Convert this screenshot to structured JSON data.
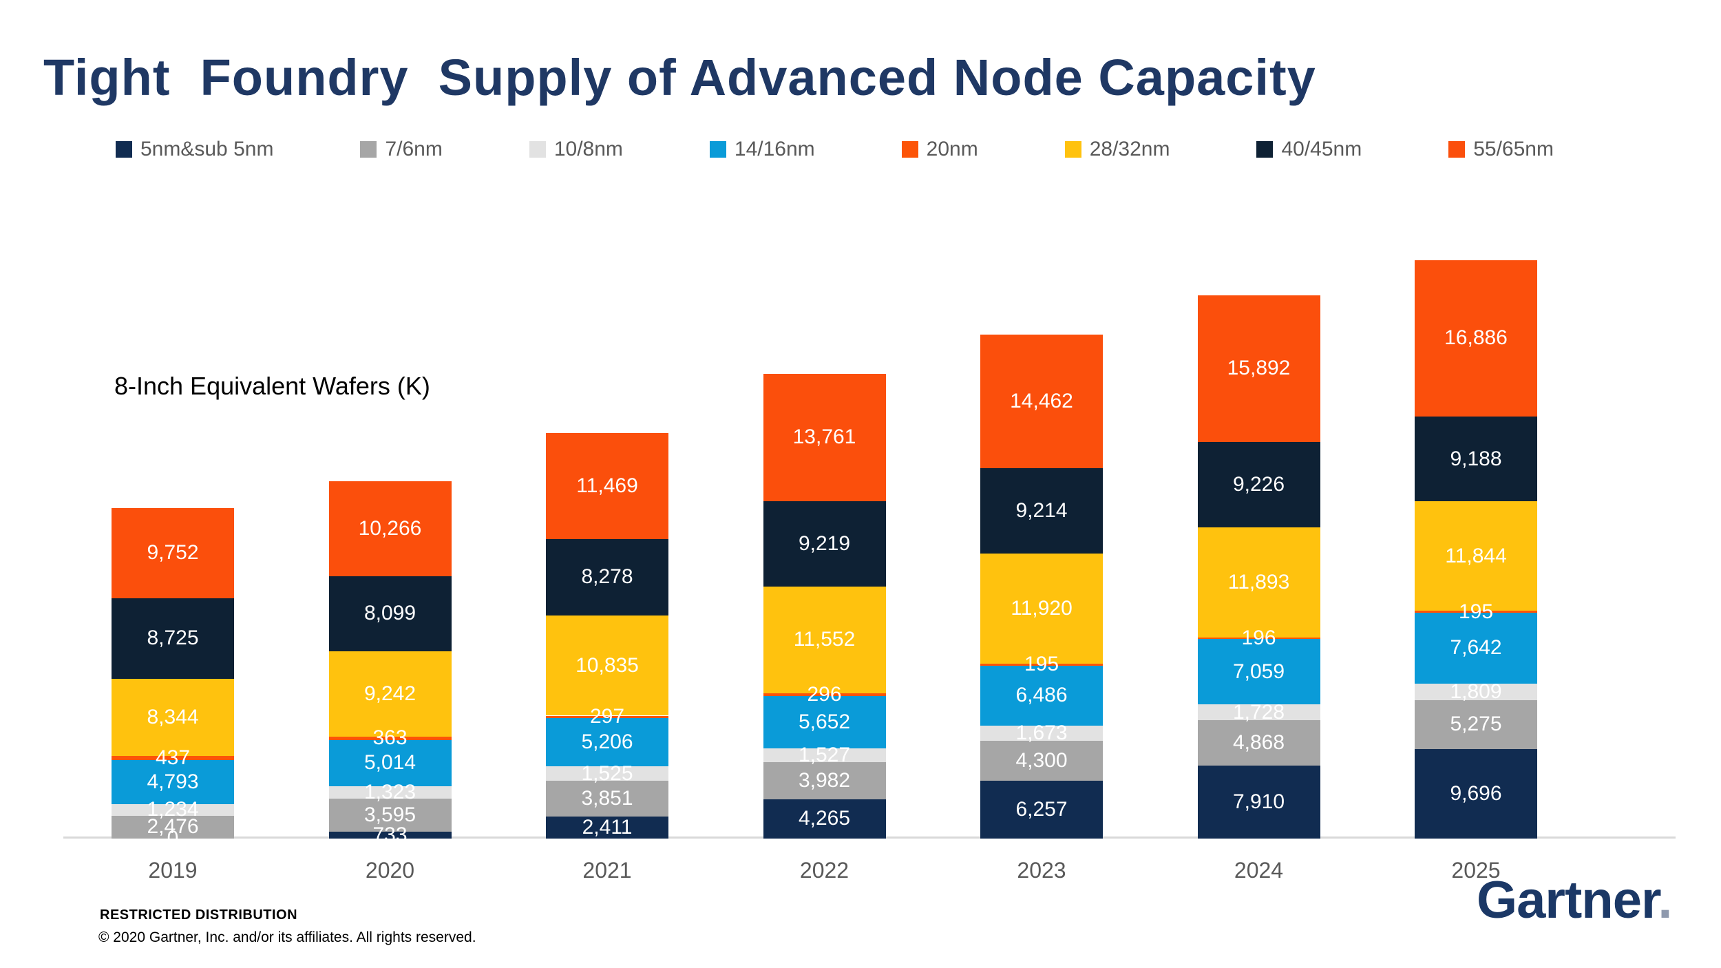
{
  "title": "Tight  Foundry  Supply of Advanced Node Capacity",
  "chart_data": {
    "type": "bar",
    "stacked": true,
    "title": "8-Inch Equivalent Wafers (K)",
    "legend_position": "top",
    "grid": false,
    "value_labels": true,
    "categories": [
      "2019",
      "2020",
      "2021",
      "2022",
      "2023",
      "2024",
      "2025"
    ],
    "series": [
      {
        "name": "5nm&sub 5nm",
        "color": "#112C51",
        "values": [
          0,
          733,
          2411,
          4265,
          6257,
          7910,
          9696
        ]
      },
      {
        "name": "7/6nm",
        "color": "#A6A6A6",
        "values": [
          2476,
          3595,
          3851,
          3982,
          4300,
          4868,
          5275
        ]
      },
      {
        "name": "10/8nm",
        "color": "#E2E2E2",
        "values": [
          1234,
          1323,
          1525,
          1527,
          1673,
          1728,
          1809
        ]
      },
      {
        "name": "14/16nm",
        "color": "#0A9BD8",
        "values": [
          4793,
          5014,
          5206,
          5652,
          6486,
          7059,
          7642
        ]
      },
      {
        "name": "20nm",
        "color": "#FC5408",
        "values": [
          437,
          363,
          297,
          296,
          195,
          196,
          195
        ]
      },
      {
        "name": "28/32nm",
        "color": "#FFC20E",
        "values": [
          8344,
          9242,
          10835,
          11552,
          11920,
          11893,
          11844
        ]
      },
      {
        "name": "40/45nm",
        "color": "#0E2134",
        "values": [
          8725,
          8099,
          8278,
          9219,
          9214,
          9226,
          9188
        ]
      },
      {
        "name": "55/65nm",
        "color": "#FB4F0C",
        "values": [
          9752,
          10266,
          11469,
          13761,
          14462,
          15892,
          16886
        ]
      }
    ],
    "totals": [
      35761,
      38635,
      43872,
      50254,
      54507,
      58772,
      62535
    ],
    "ylim": [
      0,
      62535
    ],
    "xlabel": "",
    "ylabel": "8-Inch Equivalent Wafers (K)"
  },
  "colors": {
    "title": "#1F3864",
    "legend_text": "#595959",
    "axis_line": "#D9D9D9",
    "value_label": "#FFFFFF",
    "logo": "#1B3866"
  },
  "footer": {
    "restricted": "RESTRICTED DISTRIBUTION",
    "copyright": "© 2020 Gartner, Inc. and/or its affiliates. All rights reserved.",
    "logo": "Gartner",
    "logo_dot": "."
  }
}
